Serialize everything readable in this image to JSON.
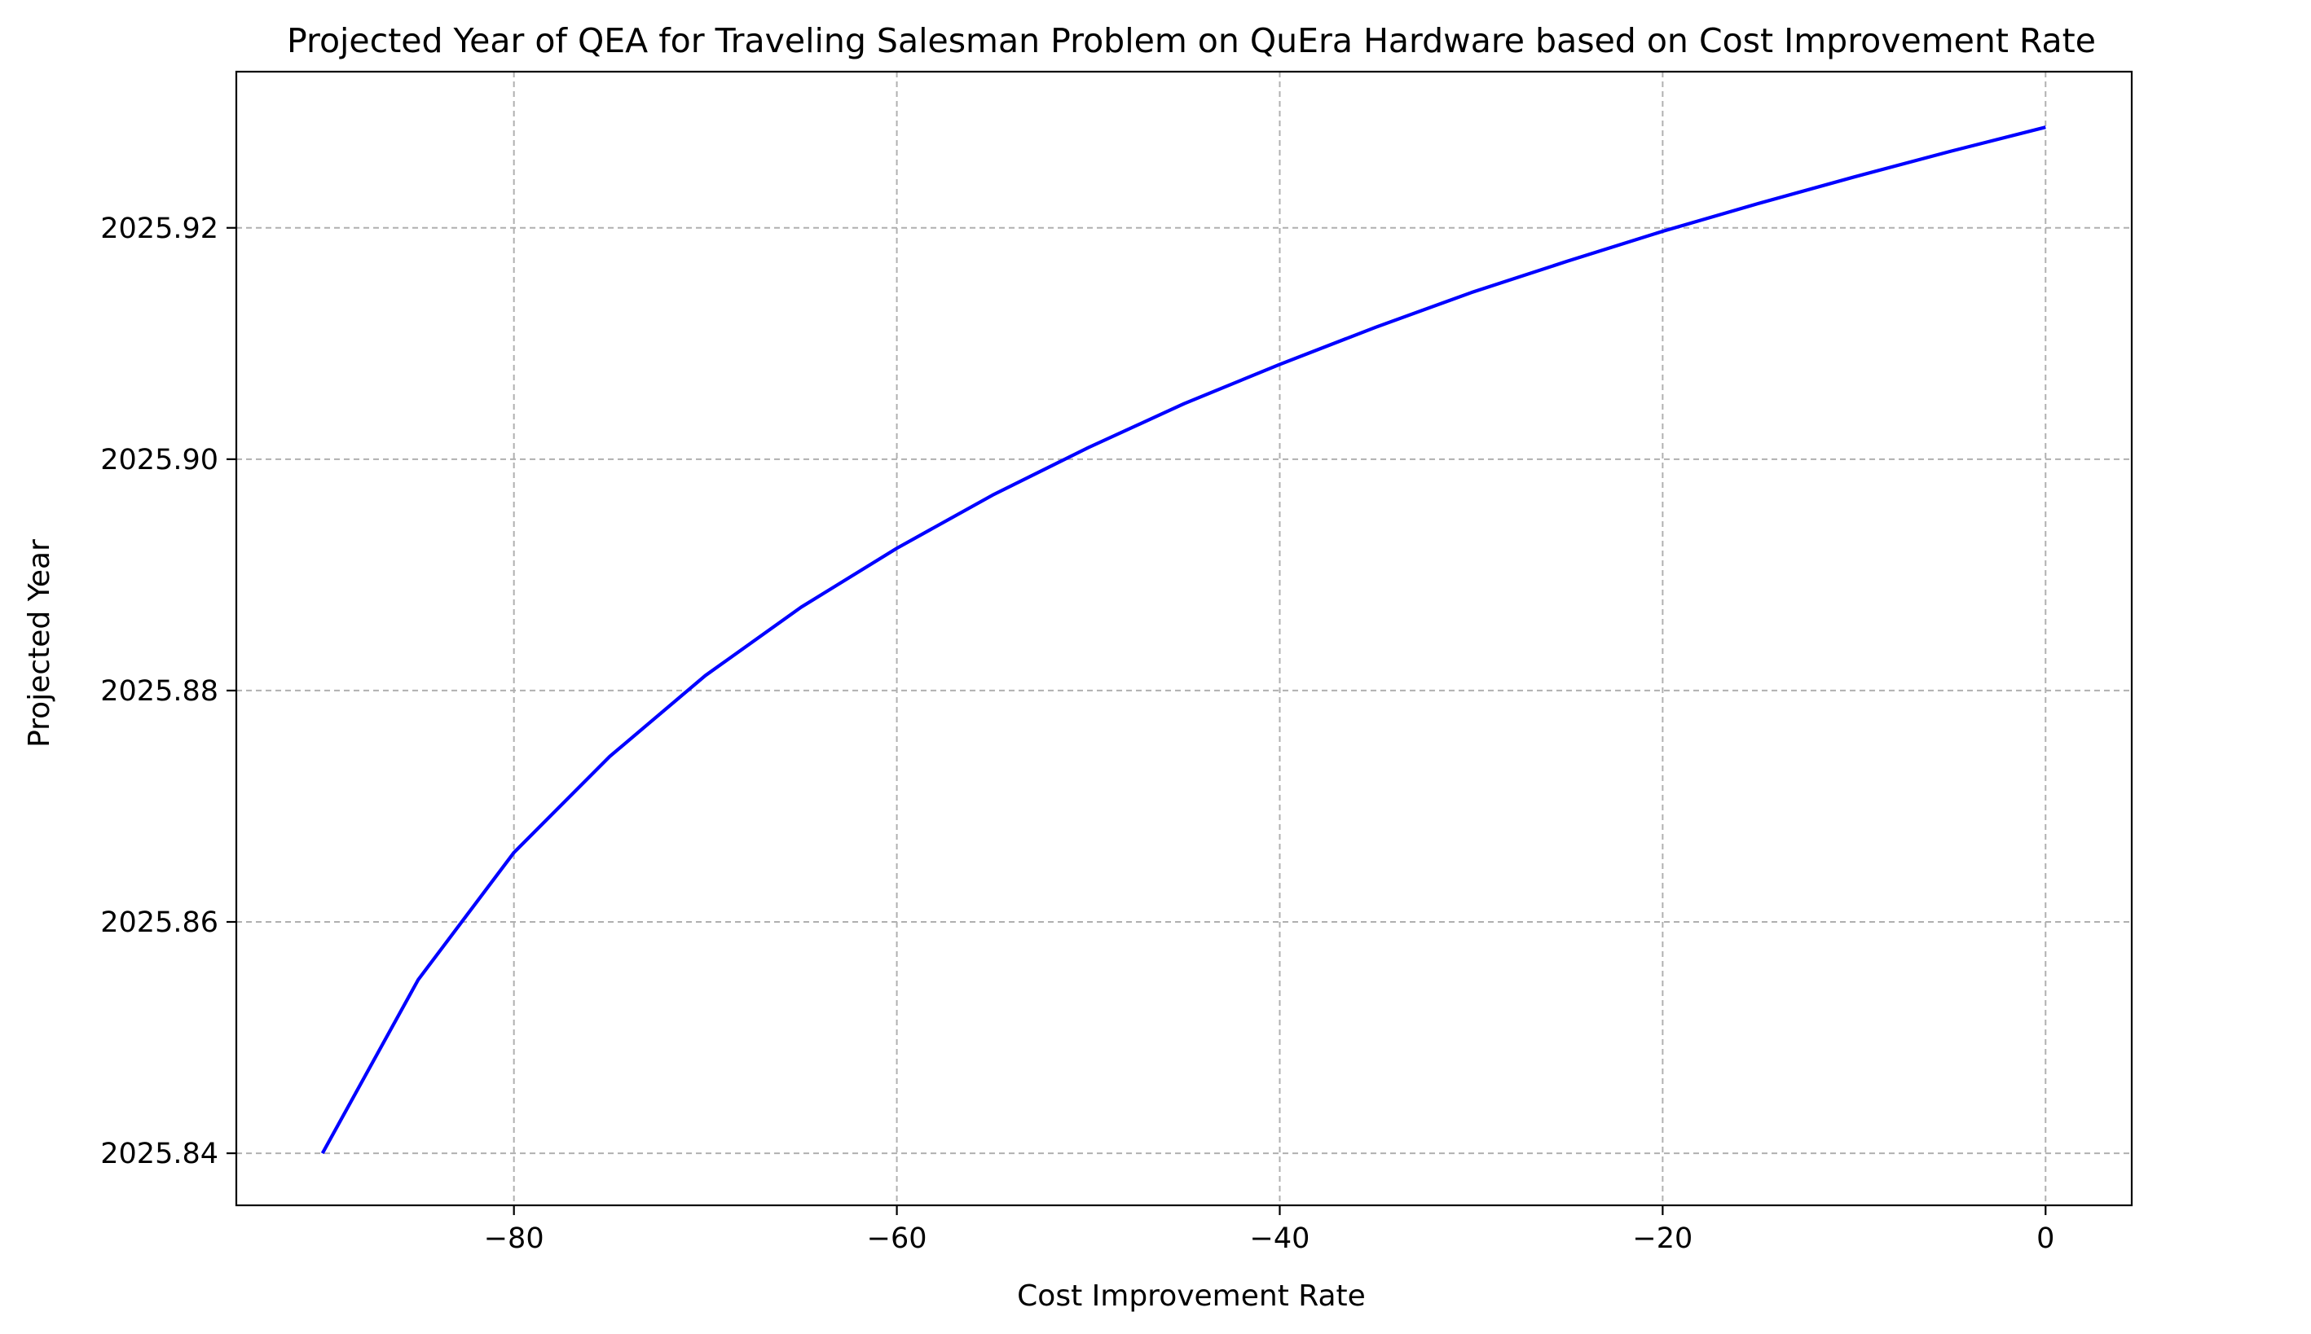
{
  "chart_data": {
    "type": "line",
    "title": "Projected Year of QEA for Traveling Salesman Problem on QuEra Hardware based on Cost Improvement Rate",
    "xlabel": "Cost Improvement Rate",
    "ylabel": "Projected Year",
    "xlim": [
      -94.5,
      4.5
    ],
    "ylim": [
      2025.8355,
      2025.9335
    ],
    "xticks": [
      -80,
      -60,
      -40,
      -20,
      0
    ],
    "xtick_labels": [
      "−80",
      "−60",
      "−40",
      "−20",
      "0"
    ],
    "yticks": [
      2025.84,
      2025.86,
      2025.88,
      2025.9,
      2025.92
    ],
    "ytick_labels": [
      "2025.84",
      "2025.86",
      "2025.88",
      "2025.90",
      "2025.92"
    ],
    "grid": true,
    "series": [
      {
        "color": "#0000ff",
        "x": [
          -90,
          -85,
          -80,
          -75,
          -70,
          -65,
          -60,
          -55,
          -50,
          -45,
          -40,
          -35,
          -30,
          -25,
          -20,
          -15,
          -10,
          -5,
          0
        ],
        "y": [
          2025.84,
          2025.855,
          2025.866,
          2025.8743,
          2025.8813,
          2025.8872,
          2025.8923,
          2025.8969,
          2025.901,
          2025.9048,
          2025.9082,
          2025.9114,
          2025.9144,
          2025.9171,
          2025.9197,
          2025.9221,
          2025.9244,
          2025.9266,
          2025.9287
        ]
      }
    ]
  }
}
